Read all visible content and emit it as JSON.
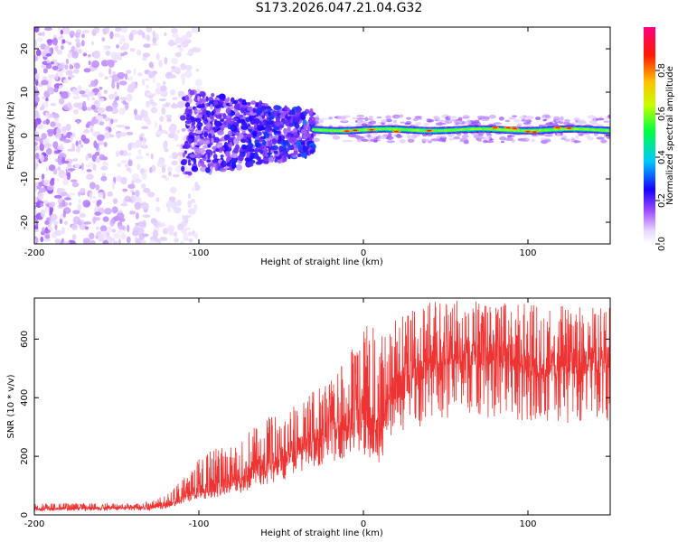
{
  "title": "S173.2026.047.21.04.G32",
  "chart_data": [
    {
      "type": "heatmap",
      "name": "spectrogram",
      "xlabel": "Height of straight line (km)",
      "ylabel": "Frequency (Hz)",
      "xlim": [
        -200,
        150
      ],
      "ylim": [
        -25,
        25
      ],
      "xticks": [
        -200,
        -100,
        0,
        100
      ],
      "yticks": [
        -20,
        -10,
        0,
        10,
        20
      ],
      "colorbar": {
        "label": "Normalized spectral amplitude",
        "range": [
          0,
          1
        ],
        "ticks": [
          "0.0",
          "0.2",
          "0.4",
          "0.6",
          "0.8"
        ],
        "colors": [
          "#ffffff",
          "#e0c8ff",
          "#9040ff",
          "#2000ff",
          "#00c0ff",
          "#00ff60",
          "#c0ff00",
          "#ffc000",
          "#ff2000",
          "#ff0080"
        ]
      },
      "description_regions": [
        {
          "x_range": [
            -200,
            -110
          ],
          "freq_spread": [
            -25,
            25
          ],
          "amplitude": "low (purple, scattered)"
        },
        {
          "x_range": [
            -110,
            -30
          ],
          "freq_spread": [
            -10,
            8
          ],
          "amplitude": "medium (blue/violet)"
        },
        {
          "x_range": [
            -30,
            150
          ],
          "freq_center": 1.5,
          "freq_spread": [
            -1,
            3
          ],
          "amplitude": "high (green/yellow/red band)"
        }
      ]
    },
    {
      "type": "line",
      "name": "snr",
      "xlabel": "Height of straight line (km)",
      "ylabel": "SNR (10 * v/v)",
      "xlim": [
        -200,
        150
      ],
      "ylim": [
        0,
        740
      ],
      "xticks": [
        -200,
        -100,
        0,
        100
      ],
      "yticks": [
        0,
        200,
        400,
        600
      ],
      "color": "#ee3333",
      "x": [
        -200,
        -180,
        -160,
        -140,
        -130,
        -120,
        -110,
        -100,
        -90,
        -80,
        -70,
        -60,
        -50,
        -40,
        -30,
        -20,
        -10,
        0,
        5,
        10,
        15,
        20,
        30,
        40,
        50,
        60,
        70,
        80,
        90,
        100,
        110,
        120,
        130,
        140,
        150
      ],
      "values": [
        20,
        22,
        23,
        25,
        25,
        35,
        60,
        80,
        100,
        110,
        140,
        170,
        190,
        230,
        260,
        290,
        310,
        340,
        300,
        280,
        400,
        440,
        480,
        530,
        545,
        560,
        550,
        545,
        540,
        520,
        510,
        515,
        525,
        530,
        530
      ],
      "envelope_max": [
        40,
        40,
        40,
        40,
        45,
        70,
        120,
        190,
        230,
        260,
        290,
        330,
        360,
        380,
        430,
        470,
        540,
        630,
        680,
        600,
        640,
        680,
        700,
        730,
        740,
        740,
        730,
        720,
        735,
        725,
        700,
        720,
        710,
        720,
        715
      ]
    }
  ]
}
